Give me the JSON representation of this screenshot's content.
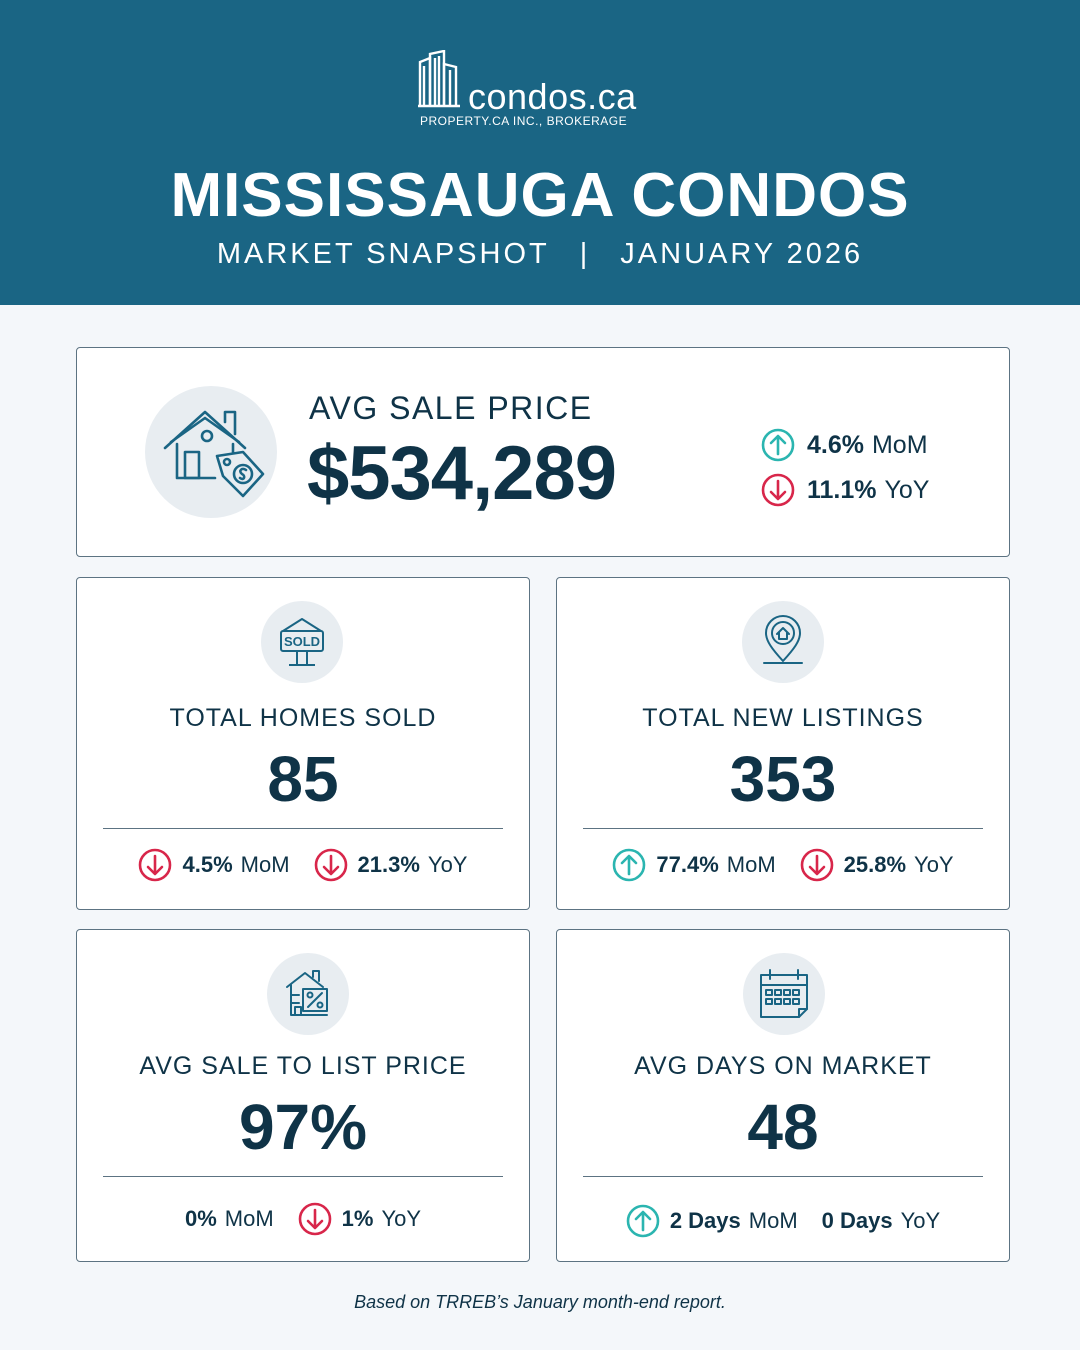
{
  "brand": {
    "logo_name": "condos.ca",
    "logo_subtitle": "PROPERTY.CA INC., BROKERAGE",
    "logo_icon": "buildings-icon"
  },
  "header": {
    "title": "MISSISSAUGA CONDOS",
    "subtitle_left": "MARKET SNAPSHOT",
    "subtitle_separator": "|",
    "subtitle_right": "JANUARY 2026"
  },
  "colors": {
    "header_bg": "#1a6584",
    "text_dark": "#0f3347",
    "up_arrow": "#2bb5b0",
    "down_arrow": "#d8264a"
  },
  "stats": {
    "avg_sale_price": {
      "icon": "house-price-tag-icon",
      "label": "AVG SALE PRICE",
      "value": "$534,289",
      "mom": {
        "direction": "up",
        "value": "4.6%",
        "unit": "MoM"
      },
      "yoy": {
        "direction": "down",
        "value": "11.1%",
        "unit": "YoY"
      }
    },
    "total_homes_sold": {
      "icon": "sold-sign-icon",
      "label": "TOTAL HOMES SOLD",
      "value": "85",
      "mom": {
        "direction": "down",
        "value": "4.5%",
        "unit": "MoM"
      },
      "yoy": {
        "direction": "down",
        "value": "21.3%",
        "unit": "YoY"
      }
    },
    "total_new_listings": {
      "icon": "location-pin-house-icon",
      "label": "TOTAL NEW LISTINGS",
      "value": "353",
      "mom": {
        "direction": "up",
        "value": "77.4%",
        "unit": "MoM"
      },
      "yoy": {
        "direction": "down",
        "value": "25.8%",
        "unit": "YoY"
      }
    },
    "avg_sale_to_list": {
      "icon": "house-percent-icon",
      "label": "AVG SALE TO LIST PRICE",
      "value": "97%",
      "mom": {
        "direction": "none",
        "value": "0%",
        "unit": "MoM"
      },
      "yoy": {
        "direction": "down",
        "value": "1%",
        "unit": "YoY"
      }
    },
    "avg_days_on_market": {
      "icon": "calendar-icon",
      "label": "AVG DAYS ON MARKET",
      "value": "48",
      "mom": {
        "direction": "up",
        "value": "2 Days",
        "unit": "MoM"
      },
      "yoy": {
        "direction": "none",
        "value": "0 Days",
        "unit": "YoY"
      }
    }
  },
  "footnote": "Based on TRREB’s January month-end report."
}
